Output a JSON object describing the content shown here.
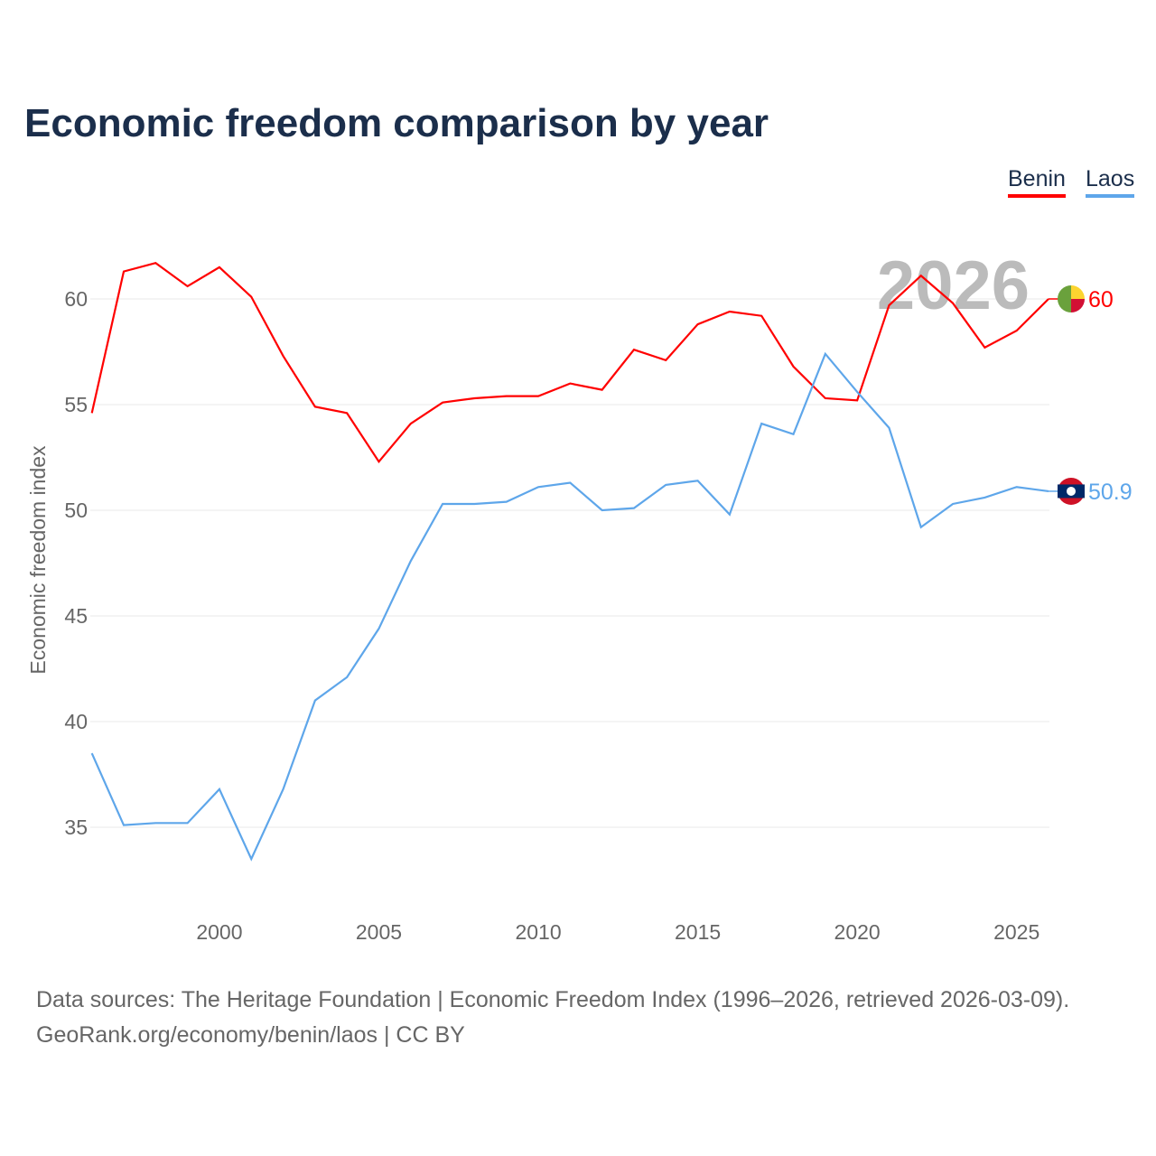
{
  "title": "Economic freedom comparison by year",
  "source_line1": "Data sources: The Heritage Foundation | Economic Freedom Index (1996–2026, retrieved 2026-03-09).",
  "source_line2": "GeoRank.org/economy/benin/laos | CC BY",
  "chart_data": {
    "type": "line",
    "title": "Economic freedom comparison by year",
    "ylabel": "Economic freedom index",
    "xlabel": "",
    "year_label": "2026",
    "xlim": [
      1996,
      2026
    ],
    "ylim": [
      31,
      64
    ],
    "xticks": [
      2000,
      2005,
      2010,
      2015,
      2020,
      2025
    ],
    "yticks": [
      35,
      40,
      45,
      50,
      55,
      60
    ],
    "grid": true,
    "legend": "top-right",
    "x": [
      1996,
      1997,
      1998,
      1999,
      2000,
      2001,
      2002,
      2003,
      2004,
      2005,
      2006,
      2007,
      2008,
      2009,
      2010,
      2011,
      2012,
      2013,
      2014,
      2015,
      2016,
      2017,
      2018,
      2019,
      2020,
      2021,
      2022,
      2023,
      2024,
      2025,
      2026
    ],
    "series": [
      {
        "name": "Benin",
        "color": "#ff0000",
        "end_label": "60",
        "values": [
          54.6,
          61.3,
          61.7,
          60.6,
          61.5,
          60.1,
          57.3,
          54.9,
          54.6,
          52.3,
          54.1,
          55.1,
          55.3,
          55.4,
          55.4,
          56.0,
          55.7,
          57.6,
          57.1,
          58.8,
          59.4,
          59.2,
          56.8,
          55.3,
          55.2,
          59.7,
          61.1,
          59.8,
          57.7,
          58.5,
          60.0
        ]
      },
      {
        "name": "Laos",
        "color": "#5ea6ea",
        "end_label": "50.9",
        "values": [
          38.5,
          35.1,
          35.2,
          35.2,
          36.8,
          33.5,
          36.8,
          41.0,
          42.1,
          44.4,
          47.6,
          50.3,
          50.3,
          50.4,
          51.1,
          51.3,
          50.0,
          50.1,
          51.2,
          51.4,
          49.8,
          54.1,
          53.6,
          57.4,
          55.6,
          53.9,
          49.2,
          50.3,
          50.6,
          51.1,
          50.9
        ]
      }
    ]
  }
}
